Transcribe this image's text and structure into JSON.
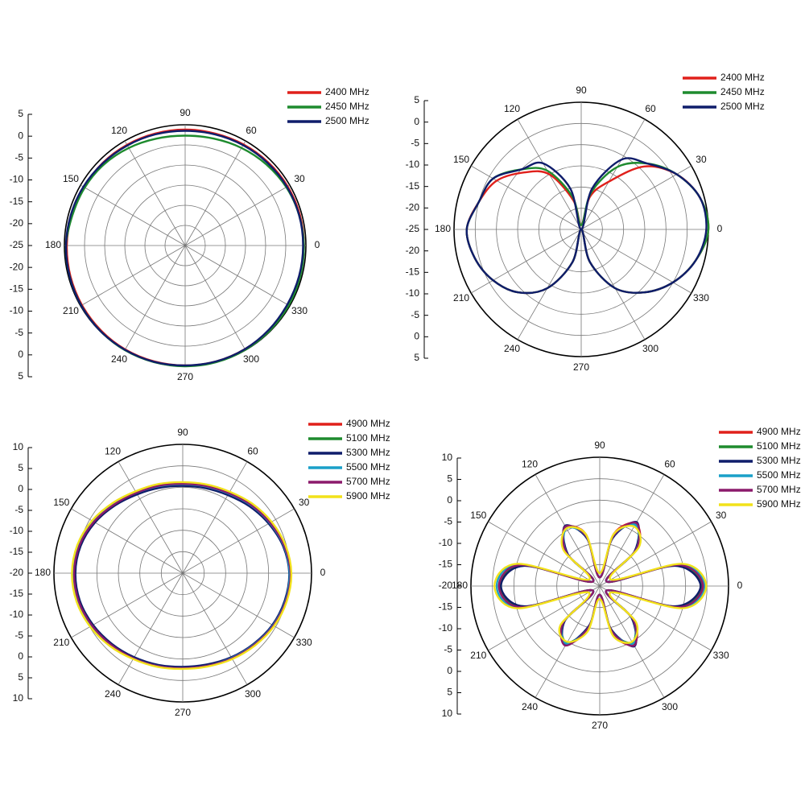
{
  "chart_data": [
    {
      "type": "polar",
      "theta": [
        0,
        15,
        30,
        45,
        60,
        75,
        90,
        105,
        120,
        135,
        150,
        165,
        180,
        195,
        210,
        225,
        240,
        255,
        270,
        285,
        300,
        315,
        330,
        345
      ],
      "rlim": [
        -25,
        5
      ],
      "rticks": [
        5,
        0,
        -5,
        -10,
        -15,
        -20,
        -25
      ],
      "angle_ticks": [
        0,
        30,
        60,
        90,
        120,
        150,
        180,
        210,
        240,
        270,
        300,
        330
      ],
      "series": [
        {
          "name": "2400 MHz",
          "color": "#e0201b",
          "values": [
            4.5,
            4.5,
            4.4,
            4.2,
            4,
            3.8,
            3.8,
            3.8,
            3.9,
            4,
            4,
            4.2,
            4.4,
            4.5,
            4.6,
            4.7,
            4.8,
            4.8,
            4.8,
            4.8,
            4.7,
            4.6,
            4.5,
            4.5
          ]
        },
        {
          "name": "2450 MHz",
          "color": "#1e8b2e",
          "values": [
            4.5,
            4.3,
            4,
            3.5,
            3,
            2.5,
            2.3,
            2.5,
            3,
            3.5,
            3.8,
            4,
            4.6,
            4.7,
            4.8,
            4.9,
            5,
            5,
            5,
            5,
            4.9,
            4.8,
            4.7,
            4.6
          ]
        },
        {
          "name": "2500 MHz",
          "color": "#0f1d6b",
          "values": [
            4.3,
            4.3,
            4.2,
            4,
            3.8,
            3.6,
            3.5,
            3.6,
            3.7,
            3.9,
            4.2,
            4.4,
            4.6,
            4.7,
            4.8,
            4.9,
            4.9,
            4.9,
            4.8,
            4.8,
            4.7,
            4.5,
            4.3,
            4.3
          ]
        }
      ]
    },
    {
      "type": "polar",
      "theta": [
        0,
        15,
        30,
        45,
        60,
        75,
        90,
        105,
        120,
        135,
        150,
        165,
        180,
        195,
        210,
        225,
        240,
        255,
        270,
        285,
        300,
        315,
        330,
        345
      ],
      "rlim": [
        -25,
        5
      ],
      "rticks": [
        5,
        0,
        -5,
        -10,
        -15,
        -20,
        -25
      ],
      "angle_ticks": [
        0,
        30,
        60,
        90,
        120,
        150,
        180,
        210,
        240,
        270,
        300,
        330
      ],
      "series": [
        {
          "name": "2400 MHz",
          "color": "#e0201b",
          "values": [
            5,
            4,
            1,
            -4,
            -12,
            -17,
            -24,
            -18,
            -10,
            -6,
            -2,
            0,
            2,
            1,
            -1,
            -4,
            -9,
            -17,
            -25,
            -17,
            -9,
            -4,
            0,
            3
          ]
        },
        {
          "name": "2450 MHz",
          "color": "#1e8b2e",
          "values": [
            5,
            4,
            1,
            -3,
            -8,
            -16,
            -24,
            -17,
            -9,
            -5,
            -1,
            0,
            2,
            1,
            -1,
            -4,
            -9,
            -17,
            -25,
            -17,
            -9,
            -4,
            0,
            3
          ]
        },
        {
          "name": "2500 MHz",
          "color": "#0f1d6b",
          "values": [
            4.5,
            4,
            1,
            -3,
            -6,
            -15,
            -25,
            -15,
            -7,
            -5,
            -1,
            0,
            2,
            1,
            -1,
            -4,
            -9,
            -17,
            -25,
            -17,
            -9,
            -4,
            0,
            3
          ]
        }
      ]
    },
    {
      "type": "polar",
      "theta": [
        0,
        15,
        30,
        45,
        60,
        75,
        90,
        105,
        120,
        135,
        150,
        165,
        180,
        195,
        210,
        225,
        240,
        255,
        270,
        285,
        300,
        315,
        330,
        345
      ],
      "rlim": [
        -20,
        10
      ],
      "rticks": [
        10,
        5,
        0,
        -5,
        -10,
        -15,
        -20
      ],
      "angle_ticks": [
        0,
        30,
        60,
        90,
        120,
        150,
        180,
        210,
        240,
        270,
        300,
        330
      ],
      "series": [
        {
          "name": "4900 MHz",
          "color": "#e0201b",
          "values": [
            5.2,
            4.6,
            3.4,
            2.3,
            1.3,
            0.8,
            0.6,
            0.9,
            1.4,
            2.6,
            3.9,
            4.9,
            5.3,
            5.1,
            4.4,
            3.6,
            2.9,
            2.4,
            2.1,
            2.3,
            2.9,
            3.6,
            4.5,
            5
          ]
        },
        {
          "name": "5100 MHz",
          "color": "#1e8b2e",
          "values": [
            5,
            4.4,
            3.3,
            2.2,
            1.2,
            0.7,
            0.5,
            0.8,
            1.3,
            2.4,
            3.7,
            4.7,
            5.1,
            4.9,
            4.2,
            3.4,
            2.7,
            2.2,
            1.9,
            2.1,
            2.7,
            3.4,
            4.2,
            4.7
          ]
        },
        {
          "name": "5300 MHz",
          "color": "#0f1d6b",
          "values": [
            4.8,
            4.2,
            3.1,
            2,
            1,
            0.5,
            0.3,
            0.6,
            1.2,
            2.3,
            3.6,
            4.6,
            5,
            4.8,
            4.1,
            3.3,
            2.6,
            2.1,
            1.8,
            2,
            2.6,
            3.3,
            4.1,
            4.6
          ]
        },
        {
          "name": "5500 MHz",
          "color": "#1aa0c8",
          "values": [
            4.9,
            4.4,
            3.4,
            2.4,
            1.4,
            0.9,
            0.7,
            1,
            1.6,
            2.8,
            4.1,
            5,
            5.4,
            5.2,
            4.5,
            3.7,
            2.9,
            2.4,
            2.1,
            2.3,
            2.8,
            3.5,
            4.3,
            4.8
          ]
        },
        {
          "name": "5700 MHz",
          "color": "#8b1a6b",
          "values": [
            5.1,
            4.5,
            3.5,
            2.5,
            1.5,
            1,
            0.8,
            1.1,
            1.6,
            2.6,
            3.9,
            4.9,
            5.3,
            5.1,
            4.4,
            3.6,
            2.9,
            2.4,
            2.1,
            2.3,
            2.9,
            3.6,
            4.4,
            4.9
          ]
        },
        {
          "name": "5900 MHz",
          "color": "#f2e21a",
          "values": [
            5.3,
            4.8,
            3.9,
            2.9,
            1.9,
            1.4,
            1.2,
            1.5,
            2,
            3.1,
            4.4,
            5.4,
            5.8,
            5.6,
            4.9,
            4,
            3.1,
            2.6,
            2.3,
            2.5,
            3.1,
            3.8,
            4.6,
            5.1
          ]
        }
      ]
    },
    {
      "type": "polar",
      "theta": [
        0,
        15,
        30,
        45,
        60,
        75,
        90,
        105,
        120,
        135,
        150,
        165,
        180,
        195,
        210,
        225,
        240,
        255,
        270,
        285,
        300,
        315,
        330,
        345
      ],
      "rlim": [
        -20,
        10
      ],
      "rticks": [
        10,
        5,
        0,
        -5,
        -10,
        -15,
        -20
      ],
      "angle_ticks": [
        0,
        30,
        60,
        90,
        120,
        150,
        180,
        210,
        240,
        270,
        300,
        330
      ],
      "series": [
        {
          "name": "4900 MHz",
          "color": "#e0201b",
          "values": [
            4.2,
            -1,
            -18,
            -7.5,
            -3.2,
            -7.5,
            -18,
            -7.5,
            -4.3,
            -8.5,
            -18,
            -1.2,
            3.2,
            -1.3,
            -18,
            -7.5,
            -4.5,
            -9.5,
            -18,
            -8.5,
            -4.2,
            -8.5,
            -18,
            -1.2
          ]
        },
        {
          "name": "5100 MHz",
          "color": "#1e8b2e",
          "values": [
            3.8,
            -1.5,
            -18,
            -8,
            -3.5,
            -8,
            -18,
            -8,
            -4,
            -9,
            -18,
            -1.5,
            3,
            -1.5,
            -18,
            -8,
            -4.8,
            -10,
            -18,
            -9,
            -4.8,
            -9,
            -18,
            -1.5
          ]
        },
        {
          "name": "5300 MHz",
          "color": "#0f1d6b",
          "values": [
            3.5,
            -1.8,
            -18,
            -8.5,
            -2.8,
            -8.5,
            -18,
            -8.5,
            -3.8,
            -9.5,
            -18,
            -1.8,
            3,
            -1.8,
            -18,
            -8.5,
            -4.2,
            -10.5,
            -18,
            -9.5,
            -3.8,
            -9.5,
            -18,
            -1.8
          ]
        },
        {
          "name": "5500 MHz",
          "color": "#1aa0c8",
          "values": [
            4.5,
            -0.5,
            -18,
            -8,
            -3.5,
            -8,
            -18,
            -8,
            -4.5,
            -9,
            -18,
            -0.5,
            4,
            -0.5,
            -18,
            -8,
            -4.5,
            -10,
            -18,
            -9,
            -4.5,
            -9,
            -18,
            -0.5
          ]
        },
        {
          "name": "5700 MHz",
          "color": "#8b1a6b",
          "values": [
            4,
            -1,
            -18,
            -8,
            -3,
            -8,
            -18,
            -8,
            -4,
            -9,
            -18,
            -1,
            3.5,
            -1,
            -18,
            -8,
            -4,
            -10,
            -18,
            -9,
            -4,
            -9,
            -18,
            -1
          ]
        },
        {
          "name": "5900 MHz",
          "color": "#f2e21a",
          "values": [
            4.8,
            0,
            -17,
            -7,
            -4,
            -7.5,
            -17,
            -7.5,
            -4.5,
            -8,
            -17,
            0,
            4.5,
            0,
            -17,
            -7,
            -5,
            -9,
            -17,
            -8,
            -5,
            -8,
            -17,
            0
          ]
        }
      ]
    }
  ]
}
